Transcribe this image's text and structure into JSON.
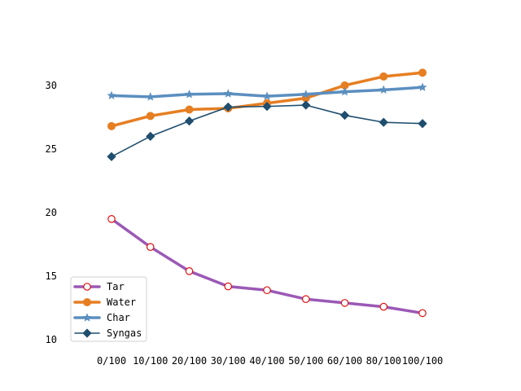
{
  "chart_data": {
    "type": "line",
    "title": "",
    "xlabel": "",
    "ylabel": "",
    "categories": [
      "0/100",
      "10/100",
      "20/100",
      "30/100",
      "40/100",
      "50/100",
      "60/100",
      "80/100",
      "100/100"
    ],
    "ylim": [
      9.5,
      33.0
    ],
    "yticks": [
      10,
      15,
      20,
      25,
      30
    ],
    "grid": false,
    "legend_position": "lower-left",
    "series": [
      {
        "name": "Tar",
        "color": "#9b59b6",
        "marker": "circle-open",
        "values": [
          19.5,
          17.3,
          15.4,
          14.2,
          13.9,
          13.2,
          12.9,
          12.6,
          12.1
        ]
      },
      {
        "name": "Water",
        "color": "#e67e22",
        "marker": "circle",
        "values": [
          26.8,
          27.6,
          28.1,
          28.2,
          28.6,
          29.0,
          30.0,
          30.7,
          31.0
        ]
      },
      {
        "name": "Char",
        "color": "#5b8fbf",
        "marker": "star",
        "values": [
          29.2,
          29.1,
          29.3,
          29.35,
          29.15,
          29.3,
          29.5,
          29.65,
          29.85
        ]
      },
      {
        "name": "Syngas",
        "color": "#1f4e6e",
        "marker": "diamond",
        "values": [
          24.4,
          26.0,
          27.2,
          28.3,
          28.35,
          28.45,
          27.65,
          27.1,
          27.0
        ]
      }
    ]
  }
}
